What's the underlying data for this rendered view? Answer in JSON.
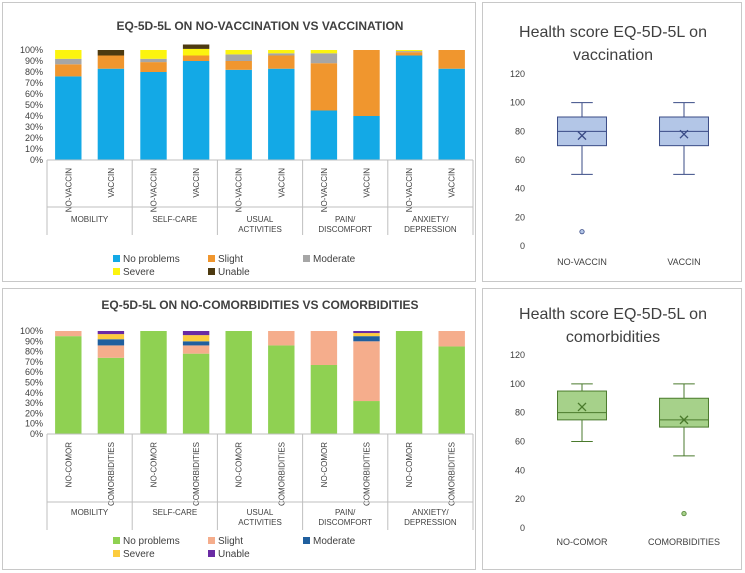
{
  "chart_data": [
    {
      "id": "bar-vacc",
      "type": "bar",
      "stacked": "percent",
      "title": "EQ-5D-5L ON NO-VACCINATION VS VACCINATION",
      "yticks": [
        "0%",
        "10%",
        "20%",
        "30%",
        "40%",
        "50%",
        "60%",
        "70%",
        "80%",
        "90%",
        "100%"
      ],
      "groups": [
        "MOBILITY",
        "SELF-CARE",
        "USUAL|ACTIVITIES",
        "PAIN/|DISCOMFORT",
        "ANXIETY/|DEPRESSION"
      ],
      "categories": [
        "NO-VACCIN",
        "VACCIN",
        "NO-VACCIN",
        "VACCIN",
        "NO-VACCIN",
        "VACCIN",
        "NO-VACCIN",
        "VACCIN",
        "NO-VACCIN",
        "VACCIN"
      ],
      "series": [
        {
          "name": "No problems",
          "color": "#13a9e6",
          "values": [
            76,
            83,
            80,
            90,
            82,
            83,
            45,
            40,
            95,
            83
          ]
        },
        {
          "name": "Slight",
          "color": "#f0962e",
          "values": [
            11,
            12,
            9,
            5,
            8,
            12,
            43,
            60,
            3,
            17
          ]
        },
        {
          "name": "Moderate",
          "color": "#a6a6a6",
          "values": [
            5,
            0,
            3,
            0,
            6,
            2,
            9,
            0,
            1,
            0
          ]
        },
        {
          "name": "Severe",
          "color": "#fcf40e",
          "values": [
            8,
            0,
            8,
            6,
            4,
            3,
            3,
            0,
            1,
            0
          ]
        },
        {
          "name": "Unable",
          "color": "#4d3a10",
          "values": [
            0,
            5,
            0,
            4,
            0,
            0,
            0,
            0,
            0,
            0
          ]
        }
      ]
    },
    {
      "id": "box-vacc",
      "type": "box",
      "title_lines": [
        "Health score EQ-5D-5L on",
        "vaccination"
      ],
      "ylim": [
        0,
        120
      ],
      "yticks": [
        0,
        20,
        40,
        60,
        80,
        100,
        120
      ],
      "fill": "#b3c6e7",
      "stroke": "#3a4b86",
      "boxes": [
        {
          "label": "NO-VACCIN",
          "min": 50,
          "q1": 70,
          "median": 80,
          "q3": 90,
          "max": 100,
          "mean": 77,
          "outliers": [
            10
          ]
        },
        {
          "label": "VACCIN",
          "min": 50,
          "q1": 70,
          "median": 80,
          "q3": 90,
          "max": 100,
          "mean": 78,
          "outliers": []
        }
      ]
    },
    {
      "id": "bar-comor",
      "type": "bar",
      "stacked": "percent",
      "title": "EQ-5D-5L ON NO-COMORBIDITIES VS COMORBIDITIES",
      "yticks": [
        "0%",
        "10%",
        "20%",
        "30%",
        "40%",
        "50%",
        "60%",
        "70%",
        "80%",
        "90%",
        "100%"
      ],
      "groups": [
        "MOBILITY",
        "SELF-CARE",
        "USUAL|ACTIVITIES",
        "PAIN/|DISCOMFORT",
        "ANXIETY/|DEPRESSION"
      ],
      "categories": [
        "NO-COMOR",
        "COMORBIDITIES",
        "NO-COMOR",
        "COMORBIDITIES",
        "NO-COMOR",
        "COMORBIDITIES",
        "NO-COMOR",
        "COMORBIDITIES",
        "NO-COMOR",
        "COMORBIDITIES"
      ],
      "series": [
        {
          "name": "No problems",
          "color": "#8fd152",
          "values": [
            95,
            74,
            100,
            78,
            100,
            86,
            67,
            32,
            100,
            85
          ]
        },
        {
          "name": "Slight",
          "color": "#f5ad8c",
          "values": [
            5,
            12,
            0,
            8,
            0,
            14,
            33,
            58,
            0,
            15
          ]
        },
        {
          "name": "Moderate",
          "color": "#205f9e",
          "values": [
            0,
            6,
            0,
            4,
            0,
            0,
            0,
            5,
            0,
            0
          ]
        },
        {
          "name": "Severe",
          "color": "#fccc3e",
          "values": [
            0,
            5,
            0,
            6,
            0,
            0,
            0,
            3,
            0,
            0
          ]
        },
        {
          "name": "Unable",
          "color": "#6a2ba4",
          "values": [
            0,
            3,
            0,
            4,
            0,
            0,
            0,
            2,
            0,
            0
          ]
        }
      ]
    },
    {
      "id": "box-comor",
      "type": "box",
      "title_lines": [
        "Health score EQ-5D-5L on",
        "comorbidities"
      ],
      "ylim": [
        0,
        120
      ],
      "yticks": [
        0,
        20,
        40,
        60,
        80,
        100,
        120
      ],
      "fill": "#a6d18a",
      "stroke": "#4a7a2c",
      "boxes": [
        {
          "label": "NO-COMOR",
          "min": 60,
          "q1": 75,
          "median": 80,
          "q3": 95,
          "max": 100,
          "mean": 84,
          "outliers": []
        },
        {
          "label": "COMORBIDITIES",
          "min": 50,
          "q1": 70,
          "median": 75,
          "q3": 90,
          "max": 100,
          "mean": 75,
          "outliers": [
            10
          ]
        }
      ]
    }
  ]
}
